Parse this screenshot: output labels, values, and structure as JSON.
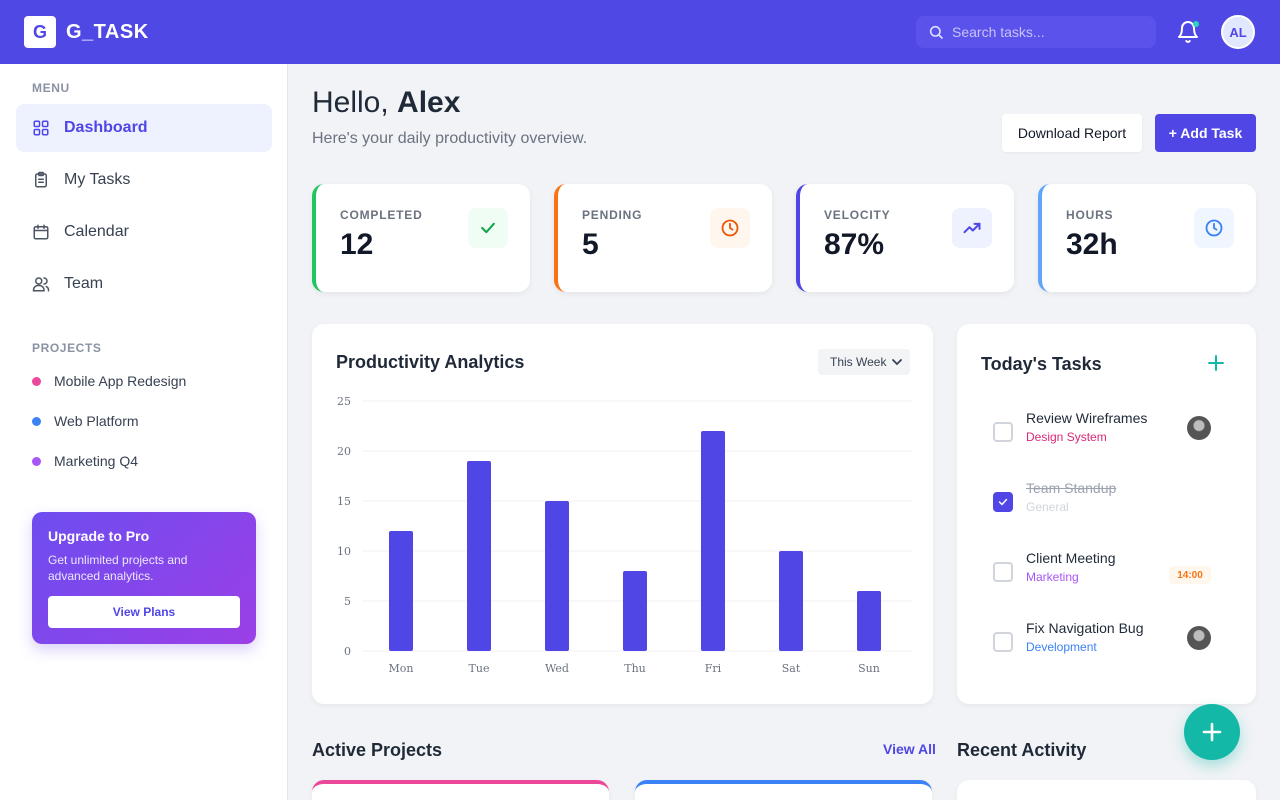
{
  "app": {
    "logo_letter": "G",
    "name": "G_TASK"
  },
  "header": {
    "search_placeholder": "Search tasks...",
    "avatar_initials": "AL"
  },
  "sidebar": {
    "menu_label": "MENU",
    "items": [
      {
        "label": "Dashboard",
        "icon": "grid-icon",
        "active": true
      },
      {
        "label": "My Tasks",
        "icon": "clipboard-icon",
        "active": false
      },
      {
        "label": "Calendar",
        "icon": "calendar-icon",
        "active": false
      },
      {
        "label": "Team",
        "icon": "users-icon",
        "active": false
      }
    ],
    "projects_label": "PROJECTS",
    "projects": [
      {
        "label": "Mobile App Redesign",
        "color": "#ec4899"
      },
      {
        "label": "Web Platform",
        "color": "#3b82f6"
      },
      {
        "label": "Marketing Q4",
        "color": "#a855f7"
      }
    ],
    "upgrade": {
      "title": "Upgrade to Pro",
      "text": "Get unlimited projects and advanced analytics.",
      "button": "View Plans"
    }
  },
  "main": {
    "greeting_prefix": "Hello, ",
    "greeting_name": "Alex",
    "subtitle": "Here's your daily productivity overview.",
    "download_button": "Download Report",
    "add_button": "+ Add Task",
    "stats": [
      {
        "label": "COMPLETED",
        "value": "12",
        "color": "#22c55e",
        "icon": "check-icon"
      },
      {
        "label": "PENDING",
        "value": "5",
        "color": "#f97316",
        "icon": "clock-icon"
      },
      {
        "label": "VELOCITY",
        "value": "87%",
        "color": "#4f46e5",
        "icon": "trending-up-icon"
      },
      {
        "label": "HOURS",
        "value": "32h",
        "color": "#3b82f6",
        "icon": "clock-icon"
      }
    ],
    "chart": {
      "title": "Productivity Analytics",
      "range": "This Week"
    },
    "tasks": {
      "title": "Today's Tasks",
      "items": [
        {
          "name": "Review Wireframes",
          "tag": "Design System",
          "tag_color": "#db2777",
          "done": false
        },
        {
          "name": "Team Standup",
          "tag": "General",
          "tag_color": "#d1d5db",
          "done": true
        },
        {
          "name": "Client Meeting",
          "tag": "Marketing",
          "tag_color": "#a855f7",
          "done": false,
          "time": "14:00"
        },
        {
          "name": "Fix Navigation Bug",
          "tag": "Development",
          "tag_color": "#3b82f6",
          "done": false
        }
      ]
    },
    "active_projects_title": "Active Projects",
    "view_all": "View All",
    "recent_activity_title": "Recent Activity"
  },
  "chart_data": {
    "type": "bar",
    "categories": [
      "Mon",
      "Tue",
      "Wed",
      "Thu",
      "Fri",
      "Sat",
      "Sun"
    ],
    "values": [
      12,
      19,
      15,
      8,
      22,
      10,
      6
    ],
    "ylim": [
      0,
      25
    ],
    "yticks": [
      0,
      5,
      10,
      15,
      20,
      25
    ],
    "grid": true,
    "bar_color": "#4f46e5"
  }
}
